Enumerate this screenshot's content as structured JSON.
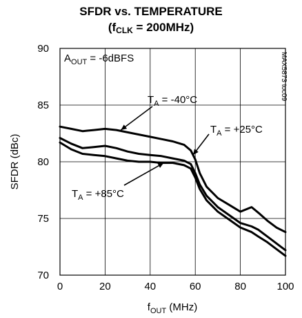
{
  "chart_data": {
    "type": "line",
    "title_main": "SFDR vs. TEMPERATURE",
    "title_sub_prefix": "(f",
    "title_sub_subscript": "CLK",
    "title_sub_suffix": " = 200MHz)",
    "xlabel_main": "f",
    "xlabel_sub": "OUT",
    "xlabel_unit": " (MHz)",
    "ylabel": "SFDR (dBc)",
    "xlim": [
      0,
      100
    ],
    "ylim": [
      70,
      90
    ],
    "xticks": [
      0,
      20,
      40,
      60,
      80,
      100
    ],
    "yticks": [
      70,
      75,
      80,
      85,
      90
    ],
    "grid": true,
    "corner_note": "MAX5873 toc09",
    "aout_label": {
      "main": "A",
      "sub": "OUT",
      "rest": " = -6dBFS"
    },
    "series": [
      {
        "name": "T_A = -40°C",
        "label_main": "T",
        "label_sub": "A",
        "label_rest": " = -40°C",
        "x": [
          0,
          5,
          10,
          15,
          20,
          25,
          30,
          35,
          40,
          45,
          50,
          55,
          58,
          60,
          62,
          65,
          70,
          75,
          80,
          85,
          88,
          92,
          96,
          100
        ],
        "y": [
          83.1,
          82.9,
          82.7,
          82.8,
          82.9,
          82.8,
          82.6,
          82.4,
          82.2,
          82.0,
          81.8,
          81.5,
          81.0,
          80.2,
          79.0,
          77.8,
          76.8,
          76.2,
          75.6,
          76.0,
          75.5,
          74.8,
          74.2,
          73.8
        ]
      },
      {
        "name": "T_A = +25°C",
        "label_main": "T",
        "label_sub": "A",
        "label_rest": " = +25°C",
        "x": [
          0,
          5,
          10,
          15,
          20,
          25,
          30,
          35,
          40,
          45,
          50,
          55,
          58,
          60,
          62,
          65,
          70,
          75,
          80,
          85,
          88,
          92,
          96,
          100
        ],
        "y": [
          82.1,
          81.6,
          81.2,
          81.3,
          81.4,
          81.2,
          80.9,
          80.7,
          80.6,
          80.5,
          80.3,
          80.1,
          79.8,
          79.0,
          78.0,
          77.0,
          76.0,
          75.3,
          74.6,
          74.3,
          74.0,
          73.4,
          72.8,
          72.2
        ]
      },
      {
        "name": "T_A = +85°C",
        "label_main": "T",
        "label_sub": "A",
        "label_rest": " = +85°C",
        "x": [
          0,
          5,
          10,
          15,
          20,
          25,
          30,
          35,
          40,
          45,
          50,
          55,
          58,
          60,
          62,
          65,
          70,
          75,
          80,
          85,
          88,
          92,
          96,
          100
        ],
        "y": [
          81.7,
          81.1,
          80.7,
          80.6,
          80.5,
          80.3,
          80.1,
          80.0,
          80.0,
          79.9,
          79.9,
          79.7,
          79.4,
          78.6,
          77.6,
          76.6,
          75.6,
          74.9,
          74.2,
          73.8,
          73.4,
          72.9,
          72.3,
          71.7
        ]
      }
    ]
  }
}
